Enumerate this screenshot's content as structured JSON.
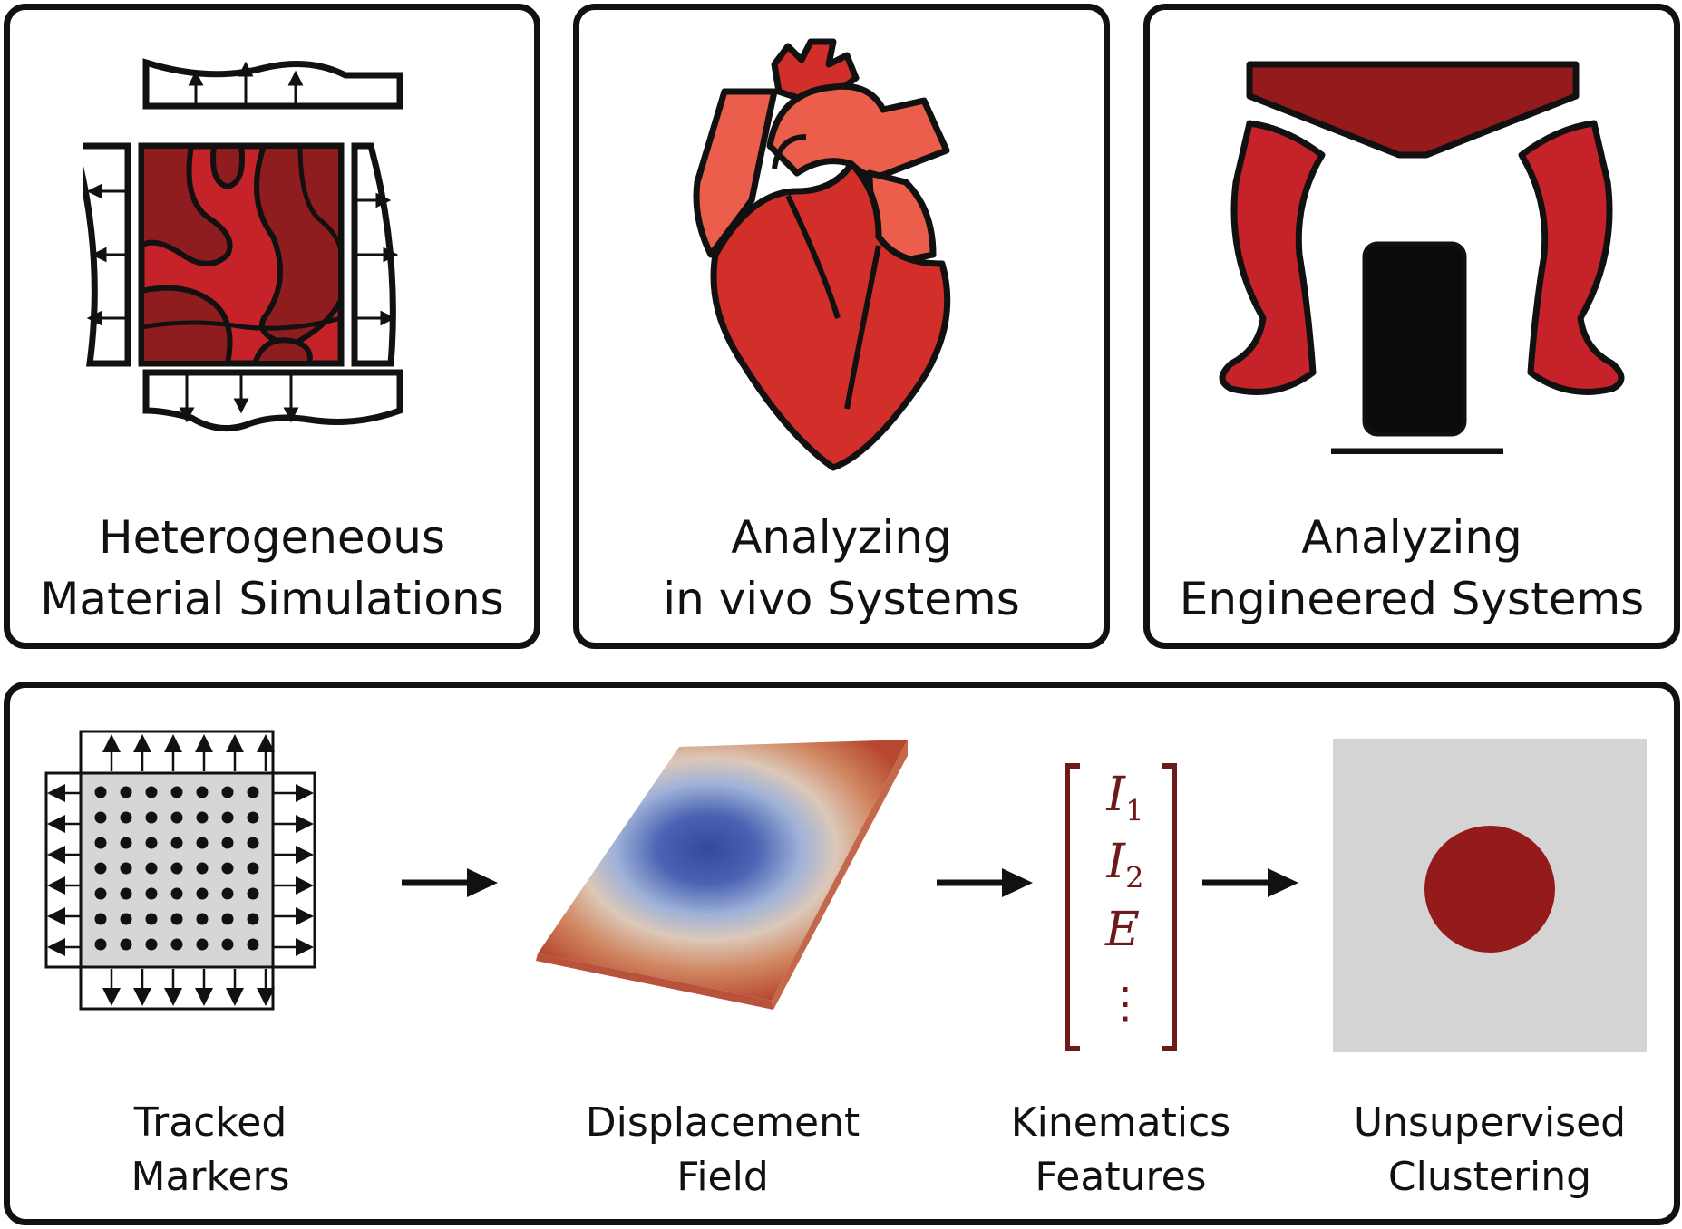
{
  "colors": {
    "outline": "#111111",
    "red_light": "#ec5e4c",
    "red_mid": "#d32f2a",
    "red_dark": "#8f1c1f",
    "red_material": "#c62229",
    "gray_panel": "#d4d4d4",
    "marker_gray": "#d6d6d6",
    "feature_text": "#6f1a1a",
    "cluster": "#951a1c",
    "blue_center": "#3a4fa0",
    "surface_edge": "#b7472f"
  },
  "panels": {
    "material": {
      "line1": "Heterogeneous",
      "line2": "Material Simulations",
      "icon": "heterogeneous-material-icon"
    },
    "in_vivo": {
      "line1": "Analyzing",
      "line2": "in vivo Systems",
      "icon": "heart-icon"
    },
    "engineered": {
      "line1": "Analyzing",
      "line2": "Engineered Systems",
      "icon": "soft-gripper-icon"
    }
  },
  "pipeline": {
    "steps": [
      {
        "line1": "Tracked",
        "line2": "Markers",
        "icon": "tracked-markers-icon"
      },
      {
        "line1": "Displacement",
        "line2": "Field",
        "icon": "displacement-field-icon"
      },
      {
        "line1": "Kinematics",
        "line2": "Features",
        "icon": "kinematics-features-icon"
      },
      {
        "line1": "Unsupervised",
        "line2": "Clustering",
        "icon": "clustering-result-icon"
      }
    ],
    "features": {
      "f1_base": "I",
      "f1_sub": "1",
      "f2_base": "I",
      "f2_sub": "2",
      "f3": "E",
      "f4": "⋮"
    }
  }
}
